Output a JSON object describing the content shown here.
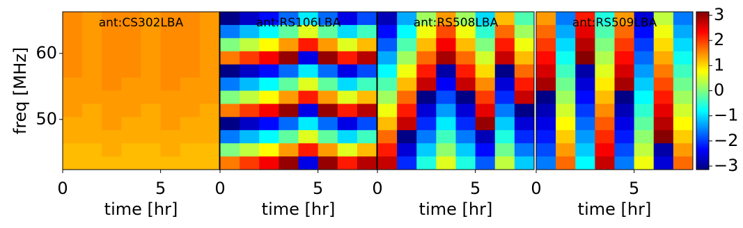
{
  "chart_data": [
    {
      "type": "heatmap",
      "title": "ant:CS302LBA",
      "xlabel": "time [hr]",
      "ylabel": "freq [MHz]",
      "xlim": [
        0,
        8
      ],
      "xticks": [
        0,
        5
      ],
      "ylim": [
        42.4,
        66.3
      ],
      "yticks": [
        50,
        60
      ],
      "colormap": "jet",
      "zlim": [
        -3.14,
        3.14
      ],
      "z": [
        [
          1.5,
          1.4,
          1.5,
          1.5,
          1.4,
          1.5,
          1.5,
          1.4
        ],
        [
          1.5,
          1.4,
          1.5,
          1.5,
          1.4,
          1.5,
          1.5,
          1.4
        ],
        [
          1.5,
          1.4,
          1.5,
          1.5,
          1.4,
          1.5,
          1.5,
          1.4
        ],
        [
          1.5,
          1.4,
          1.5,
          1.5,
          1.4,
          1.5,
          1.5,
          1.4
        ],
        [
          1.5,
          1.4,
          1.5,
          1.5,
          1.4,
          1.5,
          1.5,
          1.4
        ],
        [
          1.4,
          1.4,
          1.5,
          1.4,
          1.4,
          1.5,
          1.4,
          1.4
        ],
        [
          1.4,
          1.4,
          1.4,
          1.4,
          1.4,
          1.4,
          1.4,
          1.4
        ],
        [
          1.4,
          1.3,
          1.4,
          1.4,
          1.3,
          1.4,
          1.4,
          1.3
        ],
        [
          1.3,
          1.3,
          1.4,
          1.3,
          1.3,
          1.4,
          1.3,
          1.3
        ],
        [
          1.3,
          1.3,
          1.3,
          1.3,
          1.3,
          1.3,
          1.3,
          1.3
        ],
        [
          1.2,
          1.2,
          1.3,
          1.2,
          1.2,
          1.3,
          1.2,
          1.2
        ],
        [
          1.2,
          1.2,
          1.2,
          1.2,
          1.2,
          1.2,
          1.2,
          1.2
        ]
      ]
    },
    {
      "type": "heatmap",
      "title": "ant:RS106LBA",
      "xlabel": "time [hr]",
      "xlim": [
        0,
        8
      ],
      "xticks": [
        0,
        5
      ],
      "ylim": [
        42.4,
        66.3
      ],
      "colormap": "jet",
      "zlim": [
        -3.14,
        3.14
      ],
      "z": [
        [
          -3.1,
          -2.7,
          -2.3,
          -1.7,
          -0.9,
          -1.7,
          -2.5,
          -1.9
        ],
        [
          -1.6,
          -1.2,
          -0.8,
          -0.2,
          0.6,
          -0.2,
          -1.0,
          -0.4
        ],
        [
          0,
          0.4,
          0.8,
          1.4,
          2.2,
          1.4,
          0.6,
          1.2
        ],
        [
          1.6,
          2.0,
          2.4,
          3.0,
          -2.5,
          3.0,
          2.2,
          2.8
        ],
        [
          -3.1,
          -2.7,
          -2.3,
          -1.7,
          -0.9,
          -1.7,
          -2.5,
          -1.9
        ],
        [
          -1.6,
          -1.2,
          -0.8,
          -0.2,
          0.6,
          -0.2,
          -1.0,
          -0.4
        ],
        [
          0,
          0.4,
          0.8,
          1.4,
          2.2,
          1.4,
          0.6,
          1.2
        ],
        [
          1.6,
          2.0,
          2.4,
          3.0,
          -2.5,
          3.0,
          2.2,
          2.8
        ],
        [
          -3.1,
          -2.7,
          -2.3,
          -1.7,
          -0.9,
          -1.7,
          -2.5,
          -1.9
        ],
        [
          -1.6,
          -1.2,
          -0.8,
          -0.2,
          0.6,
          -0.2,
          -1.0,
          -0.4
        ],
        [
          0,
          0.4,
          0.8,
          1.4,
          2.2,
          1.4,
          0.6,
          1.2
        ],
        [
          1.6,
          2.0,
          2.4,
          3.0,
          -2.5,
          3.0,
          2.2,
          2.8
        ]
      ]
    },
    {
      "type": "heatmap",
      "title": "ant:RS508LBA",
      "xlabel": "time [hr]",
      "xlim": [
        0,
        8
      ],
      "xticks": [
        0,
        5
      ],
      "ylim": [
        42.4,
        66.3
      ],
      "colormap": "jet",
      "zlim": [
        -3.14,
        3.14
      ],
      "z": [
        [
          -2.8,
          -1.3,
          0.2,
          1.4,
          0.2,
          -1.0,
          1.2,
          -0.3
        ],
        [
          -2.3,
          -0.8,
          0.7,
          1.9,
          0.7,
          -0.5,
          1.7,
          0.2
        ],
        [
          -1.8,
          -0.3,
          1.2,
          2.4,
          1.2,
          0,
          2.2,
          0.7
        ],
        [
          -1.3,
          0.2,
          1.7,
          2.9,
          1.7,
          0.5,
          2.7,
          1.2
        ],
        [
          -0.8,
          0.7,
          2.2,
          -2.9,
          2.2,
          1.0,
          -3.1,
          1.7
        ],
        [
          -0.3,
          1.2,
          2.7,
          -2.4,
          2.7,
          1.5,
          -2.6,
          2.2
        ],
        [
          0.2,
          1.7,
          -3.1,
          -1.9,
          -3.1,
          2.0,
          -2.1,
          2.7
        ],
        [
          0.7,
          2.2,
          -2.6,
          -1.4,
          -2.6,
          2.5,
          -1.6,
          -3.1
        ],
        [
          1.2,
          2.7,
          -2.1,
          -0.9,
          -2.1,
          3.0,
          -1.1,
          -2.6
        ],
        [
          1.7,
          -3.1,
          -1.6,
          -0.4,
          -1.6,
          -2.8,
          -0.6,
          -2.1
        ],
        [
          2.2,
          -2.6,
          -1.1,
          0.1,
          -1.1,
          -2.3,
          -0.1,
          -1.6
        ],
        [
          2.7,
          -2.1,
          -0.6,
          0.6,
          -0.6,
          -1.8,
          0.4,
          -1.1
        ]
      ]
    },
    {
      "type": "heatmap",
      "title": "ant:RS509LBA",
      "xlabel": "time [hr]",
      "xlim": [
        0,
        8
      ],
      "xticks": [
        0,
        5
      ],
      "ylim": [
        42.4,
        66.3
      ],
      "colormap": "jet",
      "zlim": [
        -3.14,
        3.14
      ],
      "z": [
        [
          1.4,
          -1.6,
          2.2,
          -0.6,
          1.4,
          -2.6,
          0.4,
          -1.6
        ],
        [
          1.7,
          -1.3,
          2.5,
          -0.3,
          1.7,
          -2.3,
          0.7,
          -1.3
        ],
        [
          2.0,
          -1.0,
          2.8,
          0,
          2.0,
          -2.0,
          1.0,
          -1.0
        ],
        [
          2.3,
          -0.7,
          3.1,
          0.3,
          2.3,
          -1.7,
          1.3,
          -0.7
        ],
        [
          2.6,
          -0.4,
          -2.9,
          0.6,
          2.6,
          -1.4,
          1.6,
          -0.4
        ],
        [
          2.9,
          -0.1,
          -2.6,
          0.9,
          2.9,
          -1.1,
          1.9,
          -0.1
        ],
        [
          -3.1,
          0.2,
          -2.3,
          1.2,
          -3.1,
          -0.8,
          2.2,
          0.2
        ],
        [
          -2.8,
          0.5,
          -2.0,
          1.5,
          -2.8,
          -0.5,
          2.5,
          0.5
        ],
        [
          -2.5,
          0.8,
          -1.7,
          1.8,
          -2.5,
          -0.2,
          2.8,
          0.8
        ],
        [
          -2.2,
          1.1,
          -1.4,
          2.1,
          -2.2,
          0.1,
          3.1,
          1.1
        ],
        [
          -1.9,
          1.4,
          -1.1,
          2.4,
          -1.9,
          0.4,
          -2.9,
          1.4
        ],
        [
          -1.6,
          1.7,
          -0.8,
          2.7,
          -1.6,
          0.7,
          -2.6,
          1.7
        ]
      ]
    }
  ],
  "colorbar": {
    "colormap": "jet",
    "lim": [
      -3.14,
      3.14
    ],
    "ticks": [
      {
        "value": -3,
        "label": "−3"
      },
      {
        "value": -2,
        "label": "−2"
      },
      {
        "value": -1,
        "label": "−1"
      },
      0,
      1,
      2,
      3
    ]
  }
}
